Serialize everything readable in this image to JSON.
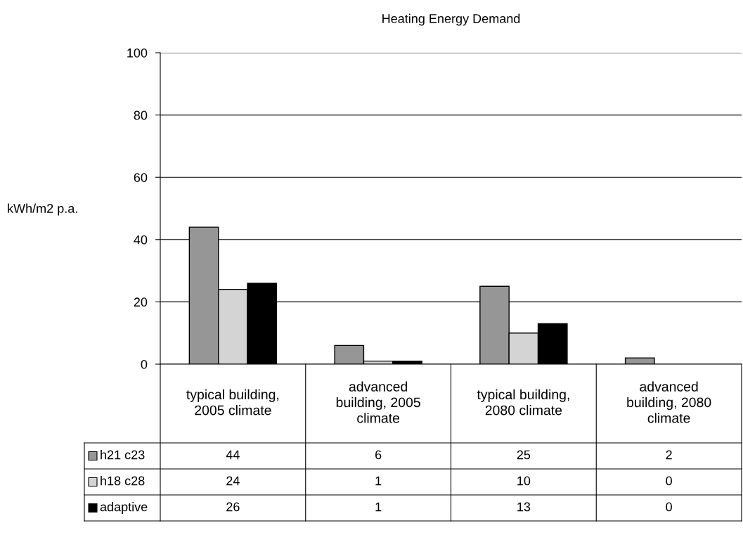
{
  "chart_data": {
    "type": "bar",
    "title": "Heating Energy Demand",
    "ylabel": "kWh/m2 p.a.",
    "categories": [
      "typical building,\n2005 climate",
      "advanced\nbuilding, 2005\nclimate",
      "typical building,\n2080 climate",
      "advanced\nbuilding, 2080\nclimate"
    ],
    "series": [
      {
        "name": "h21 c23",
        "color": "#969696",
        "values": [
          44,
          6,
          25,
          2
        ]
      },
      {
        "name": "h18 c28",
        "color": "#d4d4d4",
        "values": [
          24,
          1,
          10,
          0
        ]
      },
      {
        "name": "adaptive",
        "color": "#000000",
        "values": [
          26,
          1,
          13,
          0
        ]
      }
    ],
    "ylim": [
      0,
      100
    ],
    "yticks": [
      0,
      20,
      40,
      60,
      80,
      100
    ],
    "grid": "y",
    "legend": "bottom",
    "data_labels": true
  }
}
